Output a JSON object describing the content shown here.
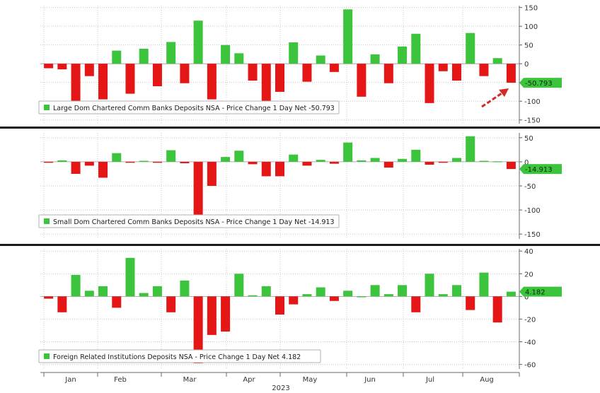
{
  "colors": {
    "up": "#3cc43c",
    "down": "#e41616",
    "grid": "#c8c8c8",
    "axis_text": "#3a7a3a",
    "divider": "#1a1a1a",
    "last_value_bg": "#3cc43c",
    "arrow": "#d42a2a"
  },
  "x_axis": {
    "months": [
      "Jan",
      "Feb",
      "Mar",
      "Apr",
      "May",
      "Jun",
      "Jul",
      "Aug"
    ],
    "year": "2023"
  },
  "chart_data": [
    {
      "type": "bar",
      "legend": "Large Dom Chartered Comm Banks Deposits NSA - Price Change 1 Day Net -50.793",
      "last_value_label": "-50.793",
      "ylim": [
        -160,
        155
      ],
      "yticks": [
        150,
        100,
        50,
        0,
        -50,
        -100,
        -150
      ],
      "values": [
        -12,
        -15,
        -105,
        -33,
        -95,
        35,
        -80,
        40,
        -60,
        58,
        -52,
        115,
        -95,
        50,
        28,
        -45,
        -105,
        -75,
        57,
        -48,
        22,
        -22,
        145,
        -88,
        25,
        -52,
        46,
        80,
        -105,
        -20,
        -45,
        82,
        -33,
        15,
        -50.793
      ]
    },
    {
      "type": "bar",
      "legend": "Small Dom Chartered Comm Banks Deposits NSA - Price Change 1 Day Net -14.913",
      "last_value_label": "-14.913",
      "ylim": [
        -160,
        60
      ],
      "yticks": [
        50,
        0,
        -50,
        -100,
        -150
      ],
      "values": [
        -2,
        3,
        -25,
        -8,
        -33,
        18,
        -2,
        2,
        -2,
        24,
        -3,
        -125,
        -50,
        10,
        23,
        -5,
        -30,
        -30,
        15,
        -8,
        4,
        -4,
        40,
        3,
        8,
        -12,
        6,
        25,
        -6,
        -2,
        8,
        53,
        2,
        1,
        -14.913
      ]
    },
    {
      "type": "bar",
      "legend": "Foreign Related Institutions Deposits NSA - Price Change 1 Day Net 4.182",
      "last_value_label": "4.182",
      "ylim": [
        -64,
        42
      ],
      "yticks": [
        40,
        20,
        0,
        -20,
        -40,
        -60
      ],
      "values": [
        -2,
        -14,
        19,
        5,
        9,
        -10,
        34,
        3,
        9,
        -14,
        14,
        -59,
        -34,
        -31,
        20,
        1,
        9,
        -16,
        -7,
        2,
        8,
        -4,
        5,
        0,
        10,
        2,
        10,
        -14,
        20,
        2,
        10,
        -12,
        21,
        -23,
        4.182
      ]
    }
  ]
}
